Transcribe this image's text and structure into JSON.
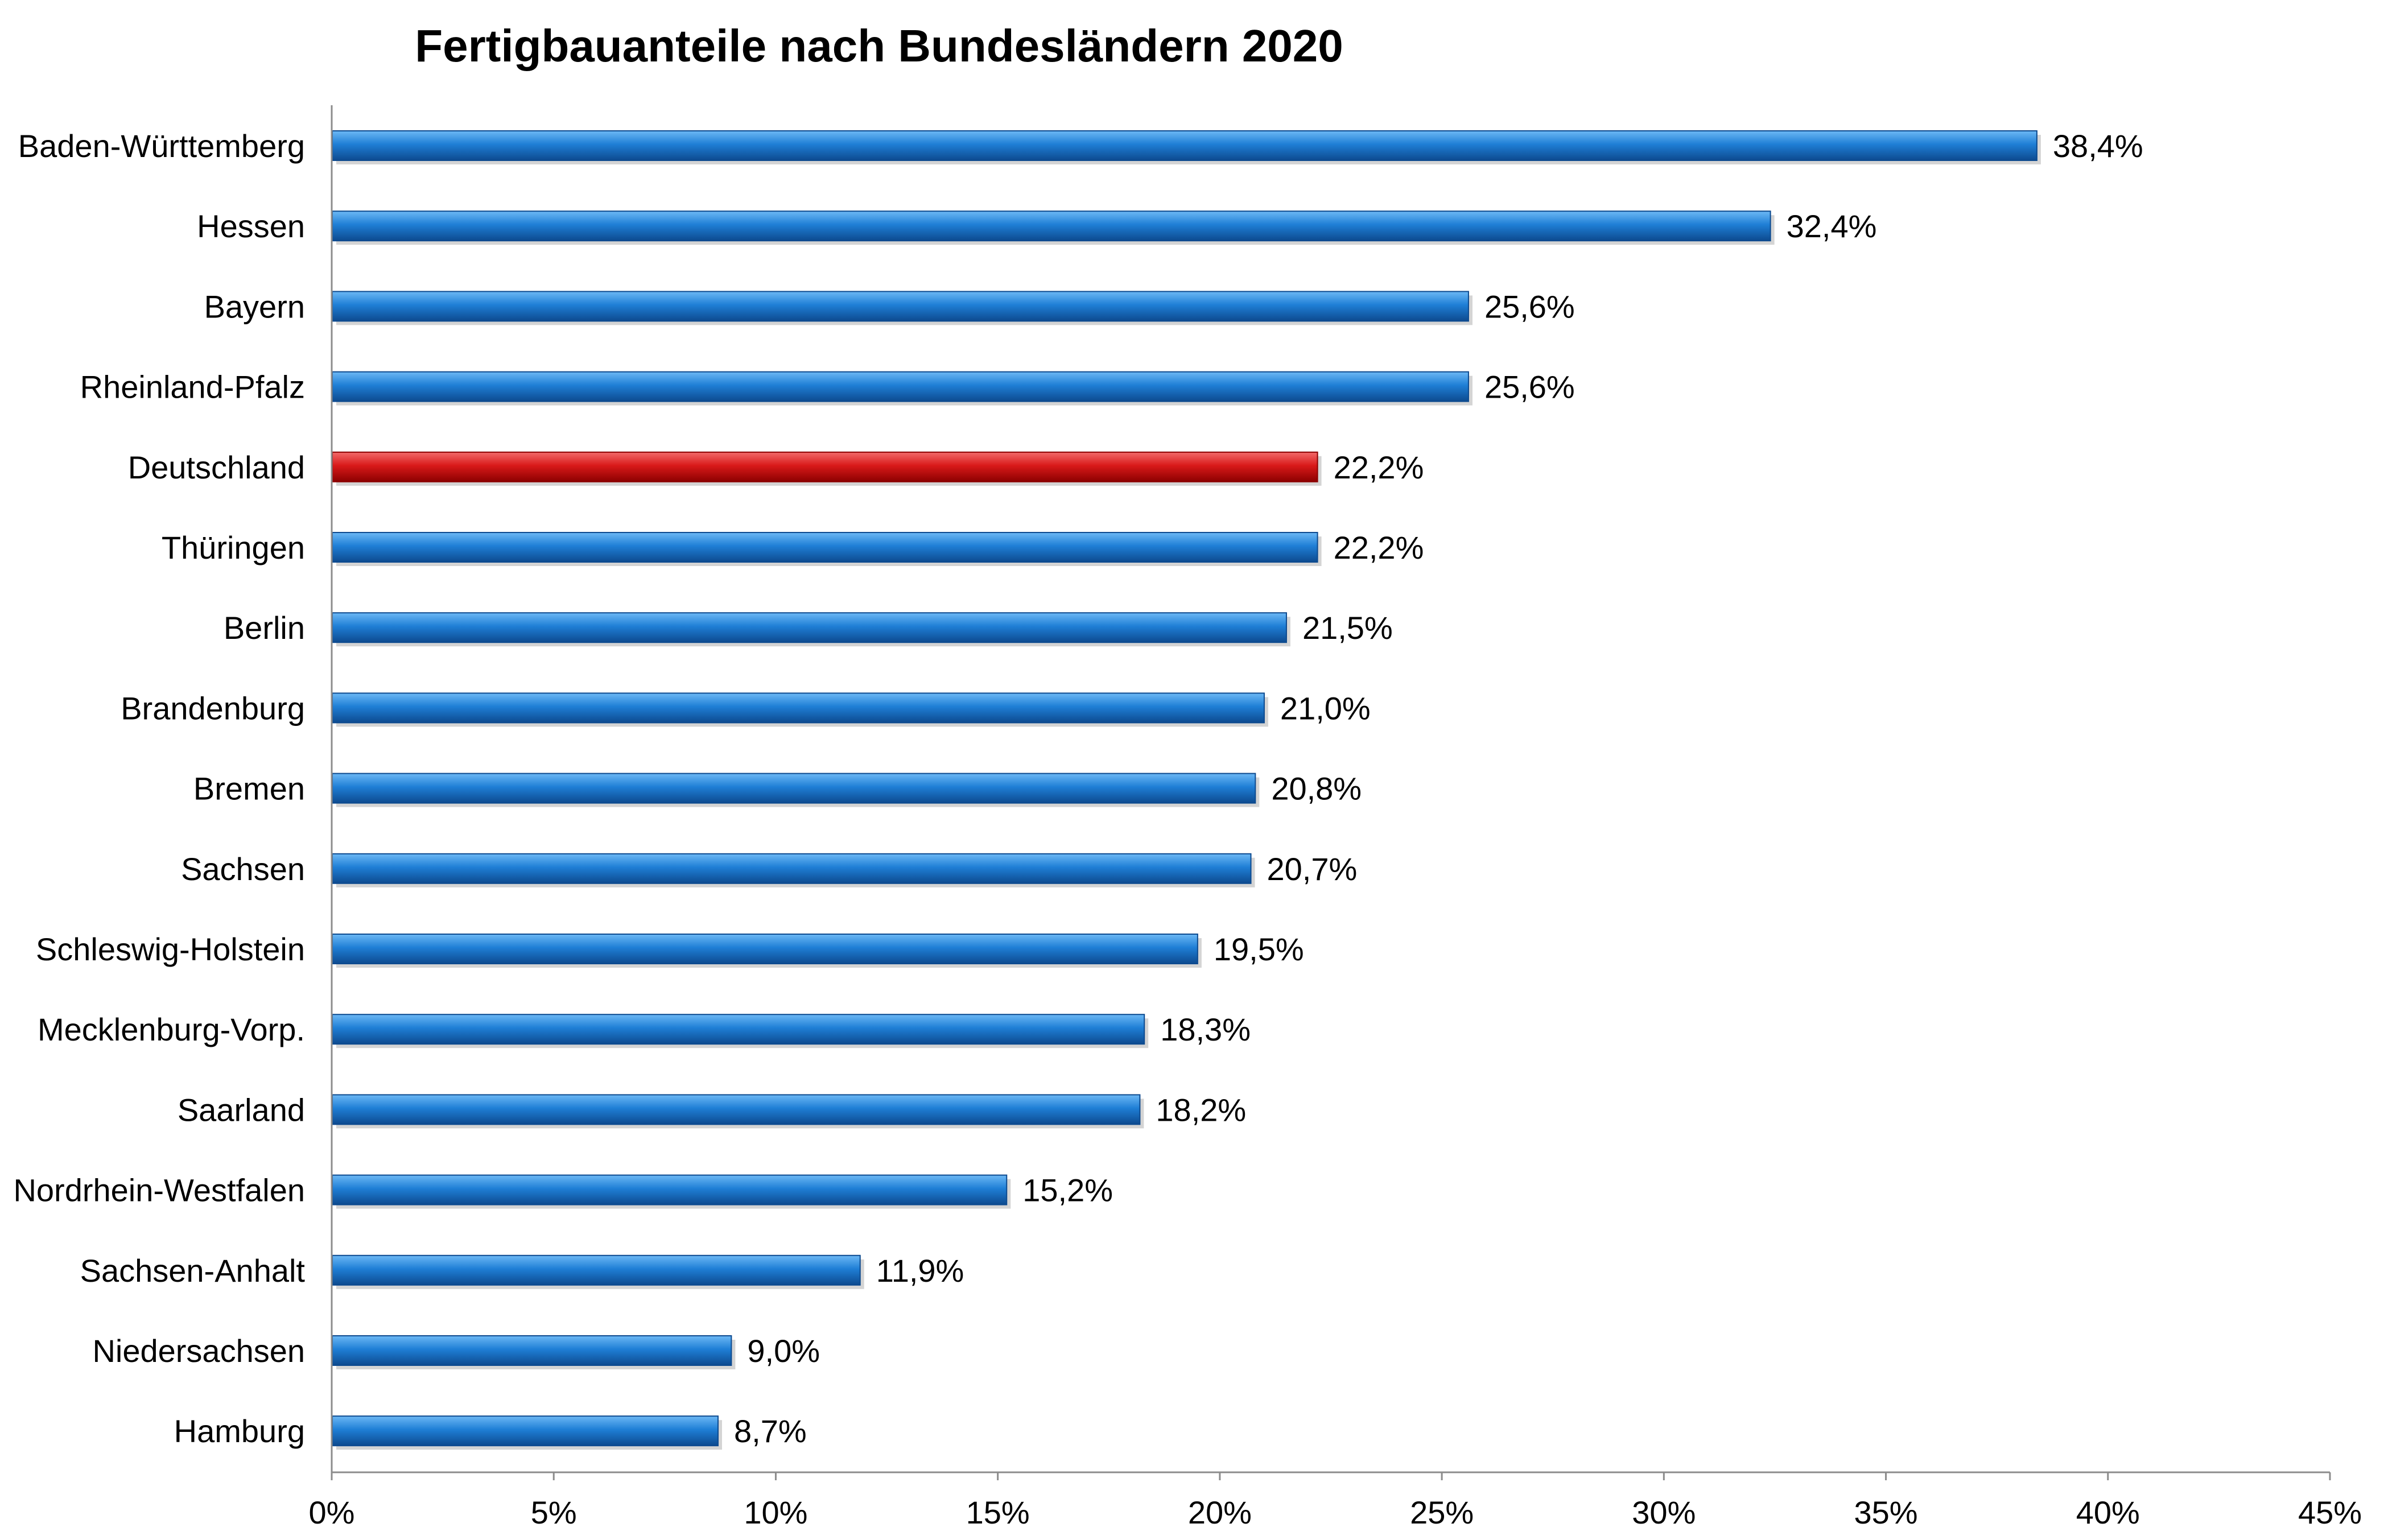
{
  "chart_data": {
    "type": "bar",
    "orientation": "horizontal",
    "title": "Fertigbauanteile nach Bundesländern 2020",
    "xlabel": "",
    "ylabel": "",
    "xlim": [
      0,
      45
    ],
    "grid": false,
    "legend": "none",
    "categories": [
      "Baden-Württemberg",
      "Hessen",
      "Bayern",
      "Rheinland-Pfalz",
      "Deutschland",
      "Thüringen",
      "Berlin",
      "Brandenburg",
      "Bremen",
      "Sachsen",
      "Schleswig-Holstein",
      "Mecklenburg-Vorp.",
      "Saarland",
      "Nordrhein-Westfalen",
      "Sachsen-Anhalt",
      "Niedersachsen",
      "Hamburg"
    ],
    "values": [
      38.4,
      32.4,
      25.6,
      25.6,
      22.2,
      22.2,
      21.5,
      21.0,
      20.8,
      20.7,
      19.5,
      18.3,
      18.2,
      15.2,
      11.9,
      9.0,
      8.7
    ],
    "value_labels": [
      "38,4%",
      "32,4%",
      "25,6%",
      "25,6%",
      "22,2%",
      "22,2%",
      "21,5%",
      "21,0%",
      "20,8%",
      "20,7%",
      "19,5%",
      "18,3%",
      "18,2%",
      "15,2%",
      "11,9%",
      "9,0%",
      "8,7%"
    ],
    "x_ticks": [
      0,
      5,
      10,
      15,
      20,
      25,
      30,
      35,
      40,
      45
    ],
    "x_tick_labels": [
      "0%",
      "5%",
      "10%",
      "15%",
      "20%",
      "25%",
      "30%",
      "35%",
      "40%",
      "45%"
    ],
    "highlight_category": "Deutschland",
    "colors": {
      "bar": "#1f7fd6",
      "bar_light": "#6cb8f5",
      "bar_dark": "#0d4a8f",
      "highlight": "#d91a1a",
      "highlight_light": "#f26a6a",
      "highlight_dark": "#8c0000",
      "axis": "#8c8c8c"
    }
  }
}
